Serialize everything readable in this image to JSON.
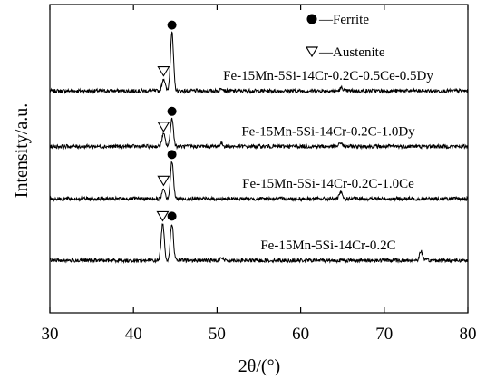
{
  "chart_data": {
    "type": "line",
    "xlabel": "2θ/(°)",
    "ylabel": "Intensity/a.u.",
    "xlim": [
      30,
      80
    ],
    "x_ticks": [
      30,
      40,
      50,
      60,
      70,
      80
    ],
    "y_ticks_shown": false,
    "grid": false,
    "legend": {
      "placement": "top-right",
      "entries": [
        {
          "marker": "filled-circle",
          "label": "—Ferrite"
        },
        {
          "marker": "open-down-triangle",
          "label": "—Austenite"
        }
      ]
    },
    "series": [
      {
        "name": "Fe-15Mn-5Si-14Cr-0.2C-0.5Ce-0.5Dy",
        "baseline": 0.72,
        "peaks": [
          {
            "x": 43.6,
            "height": 0.04,
            "phase": "Austenite"
          },
          {
            "x": 44.6,
            "height": 0.19,
            "phase": "Ferrite"
          },
          {
            "x": 50.6,
            "height": 0.01
          },
          {
            "x": 64.9,
            "height": 0.01
          }
        ]
      },
      {
        "name": "Fe-15Mn-5Si-14Cr-0.2C-1.0Dy",
        "baseline": 0.54,
        "peaks": [
          {
            "x": 43.6,
            "height": 0.04,
            "phase": "Austenite"
          },
          {
            "x": 44.6,
            "height": 0.09,
            "phase": "Ferrite"
          },
          {
            "x": 50.5,
            "height": 0.01
          },
          {
            "x": 64.8,
            "height": 0.012
          }
        ]
      },
      {
        "name": "Fe-15Mn-5Si-14Cr-0.2C-1.0Ce",
        "baseline": 0.37,
        "peaks": [
          {
            "x": 43.6,
            "height": 0.035,
            "phase": "Austenite"
          },
          {
            "x": 44.6,
            "height": 0.12,
            "phase": "Ferrite"
          },
          {
            "x": 64.8,
            "height": 0.02
          }
        ]
      },
      {
        "name": "Fe-15Mn-5Si-14Cr-0.2C",
        "baseline": 0.17,
        "peaks": [
          {
            "x": 43.5,
            "height": 0.12,
            "phase": "Austenite"
          },
          {
            "x": 44.6,
            "height": 0.12,
            "phase": "Ferrite"
          },
          {
            "x": 50.5,
            "height": 0.01
          },
          {
            "x": 74.4,
            "height": 0.03
          }
        ]
      }
    ]
  }
}
